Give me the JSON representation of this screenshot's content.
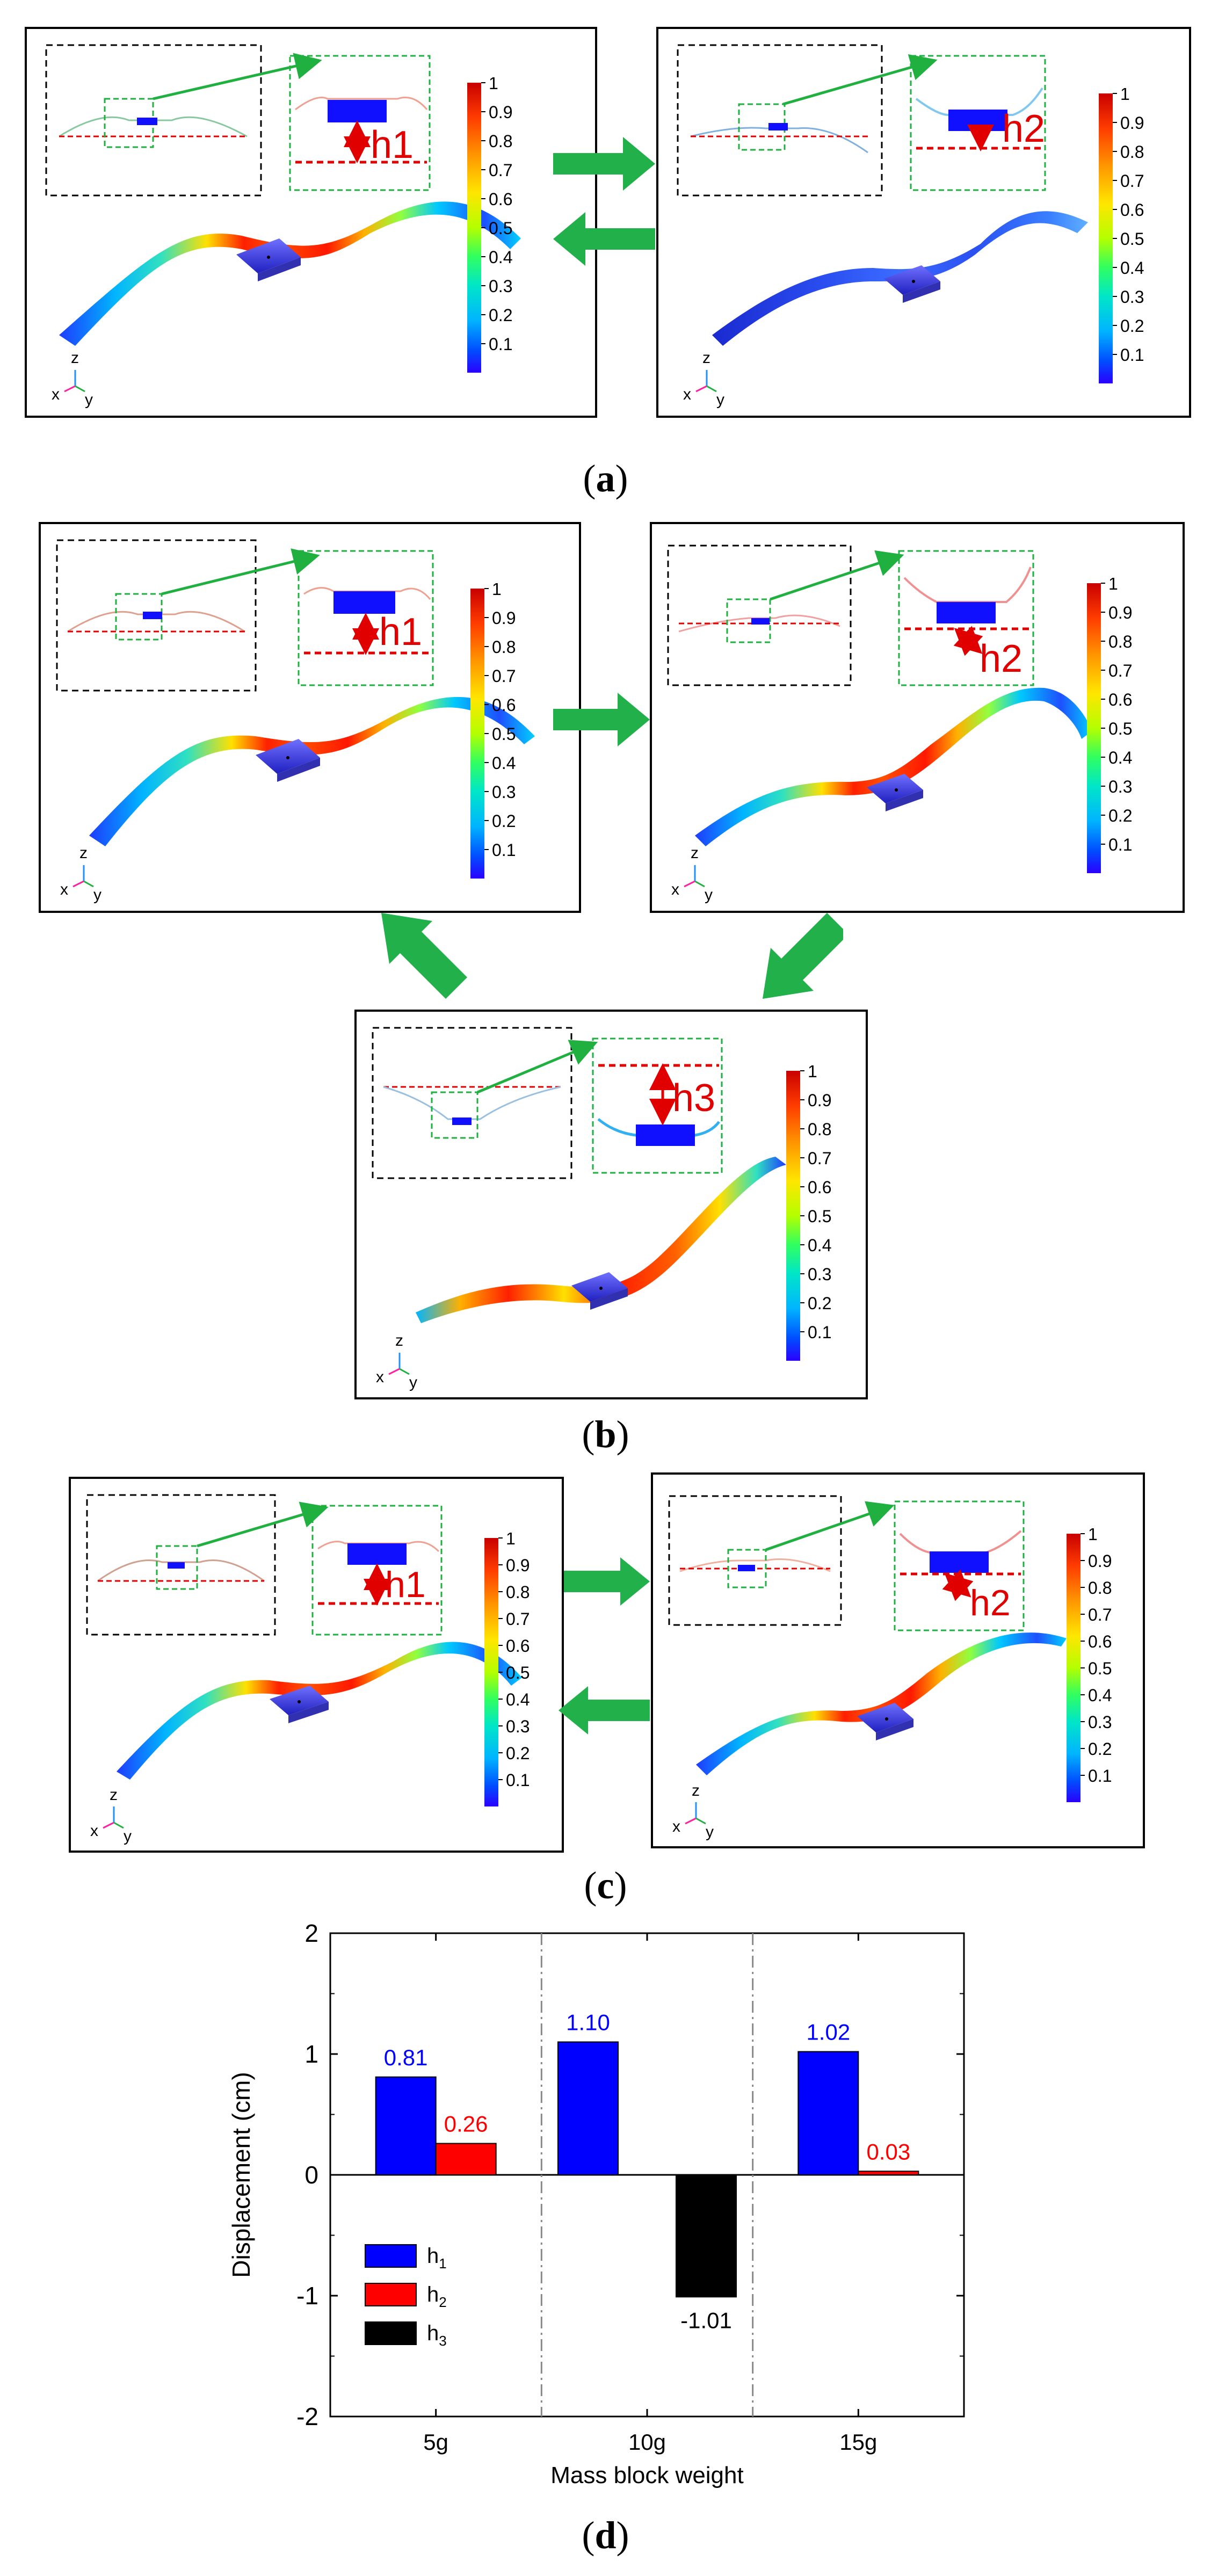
{
  "colorbar": {
    "ticks": [
      "1",
      "0.9",
      "0.8",
      "0.7",
      "0.6",
      "0.5",
      "0.4",
      "0.3",
      "0.2",
      "0.1"
    ],
    "colors": [
      "#2a00ff",
      "#0050ff",
      "#00b4ff",
      "#00e6c8",
      "#30ff60",
      "#b4ff00",
      "#ffe600",
      "#ff9600",
      "#ff3c00",
      "#c80000"
    ]
  },
  "axes": {
    "z": "z",
    "x": "x",
    "y": "y"
  },
  "panels": {
    "a": {
      "caption": "a",
      "left_label": "h1",
      "right_label": "h2"
    },
    "b": {
      "caption": "b",
      "tl_label": "h1",
      "tr_label": "h2",
      "bottom_label": "h3"
    },
    "c": {
      "caption": "c",
      "left_label": "h1",
      "right_label": "h2"
    },
    "d": {
      "caption": "d"
    }
  },
  "chart_data": {
    "type": "bar",
    "title": "",
    "xlabel": "Mass block weight",
    "ylabel": "Displacement (cm)",
    "categories": [
      "5g",
      "10g",
      "15g"
    ],
    "ylim": [
      -2,
      2
    ],
    "yticks": [
      "2",
      "1",
      "0",
      "-1",
      "-2"
    ],
    "series": [
      {
        "name": "h",
        "sub": "1",
        "color": "#0000ff",
        "label_color": "#0000ff",
        "values": [
          0.81,
          1.1,
          1.02
        ],
        "labels": [
          "0.81",
          "1.10",
          "1.02"
        ]
      },
      {
        "name": "h",
        "sub": "2",
        "color": "#ff0000",
        "label_color": "#ff0000",
        "values": [
          0.26,
          null,
          0.03
        ],
        "labels": [
          "0.26",
          "",
          "0.03"
        ]
      },
      {
        "name": "h",
        "sub": "3",
        "color": "#000000",
        "label_color": "#000000",
        "values": [
          null,
          -1.01,
          null
        ],
        "labels": [
          "",
          "-1.01",
          ""
        ]
      }
    ]
  }
}
